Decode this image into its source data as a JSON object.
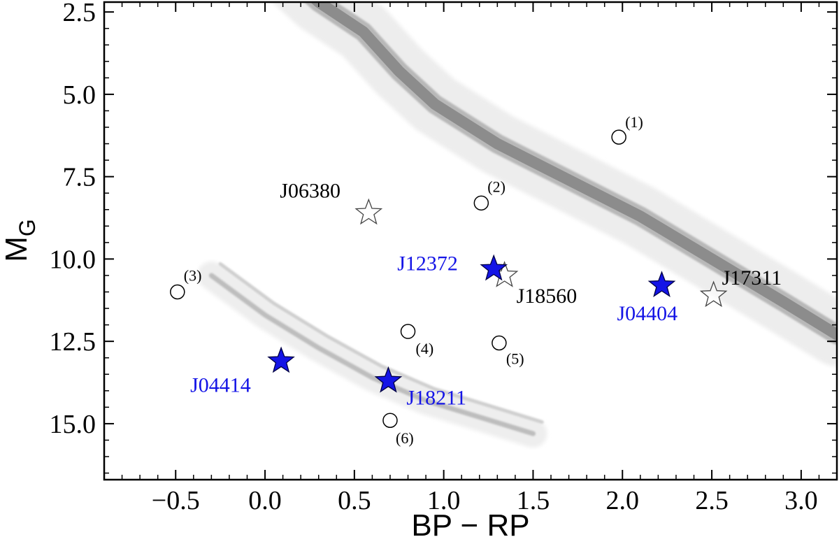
{
  "chart_data": {
    "type": "scatter",
    "title": "",
    "xlabel": "BP − RP",
    "ylabel_main": "M",
    "ylabel_sub": "G",
    "xlim": [
      -0.9,
      3.2
    ],
    "ylim": [
      16.7,
      2.2
    ],
    "y_inverted": true,
    "grid": false,
    "legend": "none",
    "x_ticks": [
      -0.5,
      0.0,
      0.5,
      1.0,
      1.5,
      2.0,
      2.5,
      3.0
    ],
    "x_tick_labels": [
      "−0.5",
      "0.0",
      "0.5",
      "1.0",
      "1.5",
      "2.0",
      "2.5",
      "3.0"
    ],
    "y_ticks": [
      2.5,
      5.0,
      7.5,
      10.0,
      12.5,
      15.0
    ],
    "y_tick_labels": [
      "2.5",
      "5.0",
      "7.5",
      "10.0",
      "12.5",
      "15.0"
    ],
    "background_sequences": {
      "main_sequence": [
        [
          0.1,
          1.2
        ],
        [
          0.3,
          2.2
        ],
        [
          0.55,
          3.1
        ],
        [
          0.75,
          4.3
        ],
        [
          0.95,
          5.3
        ],
        [
          1.3,
          6.5
        ],
        [
          1.7,
          7.6
        ],
        [
          2.1,
          8.7
        ],
        [
          2.5,
          10.0
        ],
        [
          2.9,
          11.3
        ],
        [
          3.2,
          12.3
        ]
      ],
      "white_dwarf_sequence": [
        [
          -0.3,
          10.5
        ],
        [
          0.0,
          11.7
        ],
        [
          0.3,
          12.7
        ],
        [
          0.6,
          13.6
        ],
        [
          0.9,
          14.3
        ],
        [
          1.2,
          14.8
        ],
        [
          1.5,
          15.3
        ]
      ]
    },
    "series": [
      {
        "marker": "filled-star",
        "color": "#1414e6",
        "points": [
          {
            "label": "J12372",
            "x": 1.28,
            "y": 10.3
          },
          {
            "label": "J04404",
            "x": 2.22,
            "y": 10.8
          },
          {
            "label": "J04414",
            "x": 0.09,
            "y": 13.1
          },
          {
            "label": "J18211",
            "x": 0.69,
            "y": 13.7
          }
        ]
      },
      {
        "marker": "open-star",
        "color": "#000000",
        "points": [
          {
            "label": "J06380",
            "x": 0.58,
            "y": 8.6
          },
          {
            "label": "J18560",
            "x": 1.34,
            "y": 10.5
          },
          {
            "label": "J17311",
            "x": 2.51,
            "y": 11.1
          }
        ]
      },
      {
        "marker": "open-circle",
        "color": "#000000",
        "points": [
          {
            "label": "(1)",
            "x": 1.98,
            "y": 6.3
          },
          {
            "label": "(2)",
            "x": 1.21,
            "y": 8.3
          },
          {
            "label": "(3)",
            "x": -0.49,
            "y": 11.0
          },
          {
            "label": "(4)",
            "x": 0.8,
            "y": 12.2
          },
          {
            "label": "(5)",
            "x": 1.31,
            "y": 12.55
          },
          {
            "label": "(6)",
            "x": 0.7,
            "y": 14.9
          }
        ]
      }
    ]
  }
}
